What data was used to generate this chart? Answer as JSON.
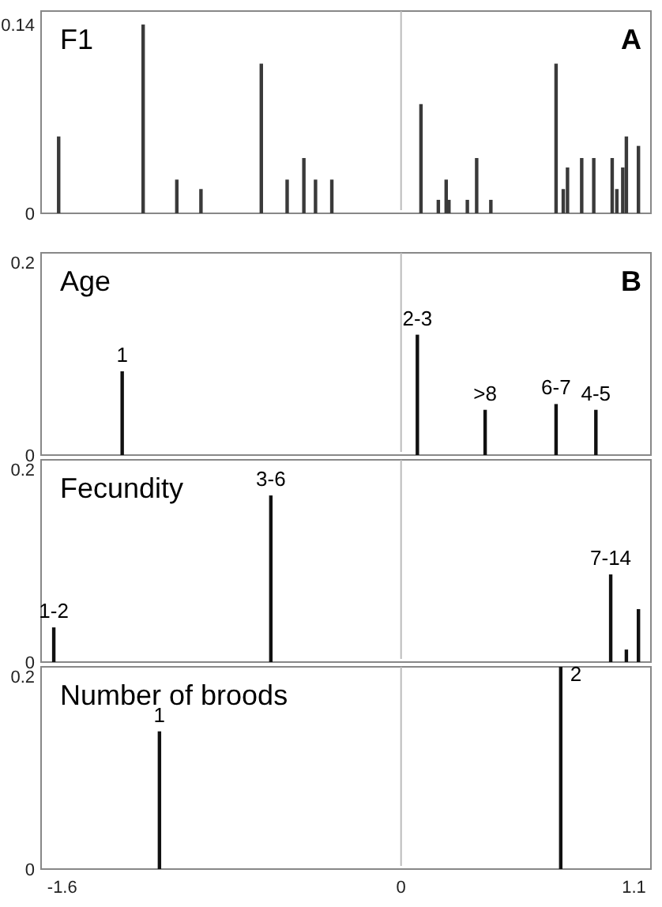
{
  "chart_data": [
    {
      "type": "bar",
      "title": "F1",
      "annotations": [
        "A"
      ],
      "color": "#3a3a3a",
      "xlim": [
        -1.7,
        1.18
      ],
      "ylim": [
        0,
        0.15
      ],
      "yticks": [
        0,
        0.14
      ],
      "tick_labels": "y",
      "ref_lines": [
        {
          "axis": "x",
          "value": 0,
          "color": "#bbbbbb"
        }
      ],
      "x": [
        -1.617,
        -1.218,
        -1.059,
        -0.945,
        -0.66,
        -0.538,
        -0.459,
        -0.404,
        -0.327,
        0.094,
        0.176,
        0.213,
        0.226,
        0.313,
        0.357,
        0.424,
        0.732,
        0.766,
        0.786,
        0.853,
        0.91,
        0.997,
        1.019,
        1.047,
        1.064,
        1.121
      ],
      "values": [
        0.057,
        0.14,
        0.025,
        0.018,
        0.111,
        0.025,
        0.041,
        0.025,
        0.025,
        0.081,
        0.01,
        0.025,
        0.01,
        0.01,
        0.041,
        0.01,
        0.111,
        0.018,
        0.034,
        0.041,
        0.041,
        0.041,
        0.018,
        0.034,
        0.057,
        0.05
      ]
    },
    {
      "type": "bar",
      "title": "Age",
      "color": "#111111",
      "xlim": [
        -1.7,
        1.18
      ],
      "ylim": [
        0,
        0.21
      ],
      "yticks": [
        0,
        0.2
      ],
      "tick_labels": "y",
      "ref_lines": [
        {
          "axis": "x",
          "value": 0,
          "color": "#bbbbbb"
        }
      ],
      "x": [
        -1.317,
        0.077,
        0.397,
        0.732,
        0.92
      ],
      "values": [
        0.087,
        0.125,
        0.047,
        0.053,
        0.047
      ],
      "annotations": [
        "B",
        {
          "text": "1",
          "x": -1.317,
          "y": 0.087
        },
        {
          "text": "2-3",
          "x": 0.077,
          "y": 0.125
        },
        {
          "text": ">8",
          "x": 0.397,
          "y": 0.047
        },
        {
          "text": "6-7",
          "x": 0.732,
          "y": 0.053
        },
        {
          "text": "4-5",
          "x": 0.92,
          "y": 0.047
        }
      ]
    },
    {
      "type": "bar",
      "title": "Fecundity",
      "color": "#111111",
      "xlim": [
        -1.7,
        1.18
      ],
      "ylim": [
        0,
        0.21
      ],
      "yticks": [
        0,
        0.2
      ],
      "tick_labels": "y",
      "ref_lines": [
        {
          "axis": "x",
          "value": 0,
          "color": "#bbbbbb"
        }
      ],
      "x": [
        -1.64,
        -0.615,
        0.99,
        1.064,
        1.121
      ],
      "values": [
        0.036,
        0.173,
        0.091,
        0.013,
        0.055
      ],
      "annotations": [
        {
          "text": "1-2",
          "x": -1.64,
          "y": 0.036
        },
        {
          "text": "3-6",
          "x": -0.615,
          "y": 0.173
        },
        {
          "text": "7-14",
          "x": 0.99,
          "y": 0.091
        }
      ]
    },
    {
      "type": "bar",
      "title": "Number of broods",
      "color": "#111111",
      "xlim": [
        -1.7,
        1.18
      ],
      "xticks": [
        -1.6,
        0,
        1.1
      ],
      "ylim": [
        0,
        0.21
      ],
      "yticks": [
        0,
        0.2
      ],
      "ref_lines": [
        {
          "axis": "x",
          "value": 0,
          "color": "#bbbbbb"
        }
      ],
      "x": [
        -1.141,
        0.754
      ],
      "values": [
        0.143,
        0.21
      ],
      "annotations": [
        {
          "text": "1",
          "x": -1.141,
          "y": 0.143
        },
        {
          "text": "2",
          "x": 0.754,
          "y": 0.21
        }
      ]
    }
  ]
}
